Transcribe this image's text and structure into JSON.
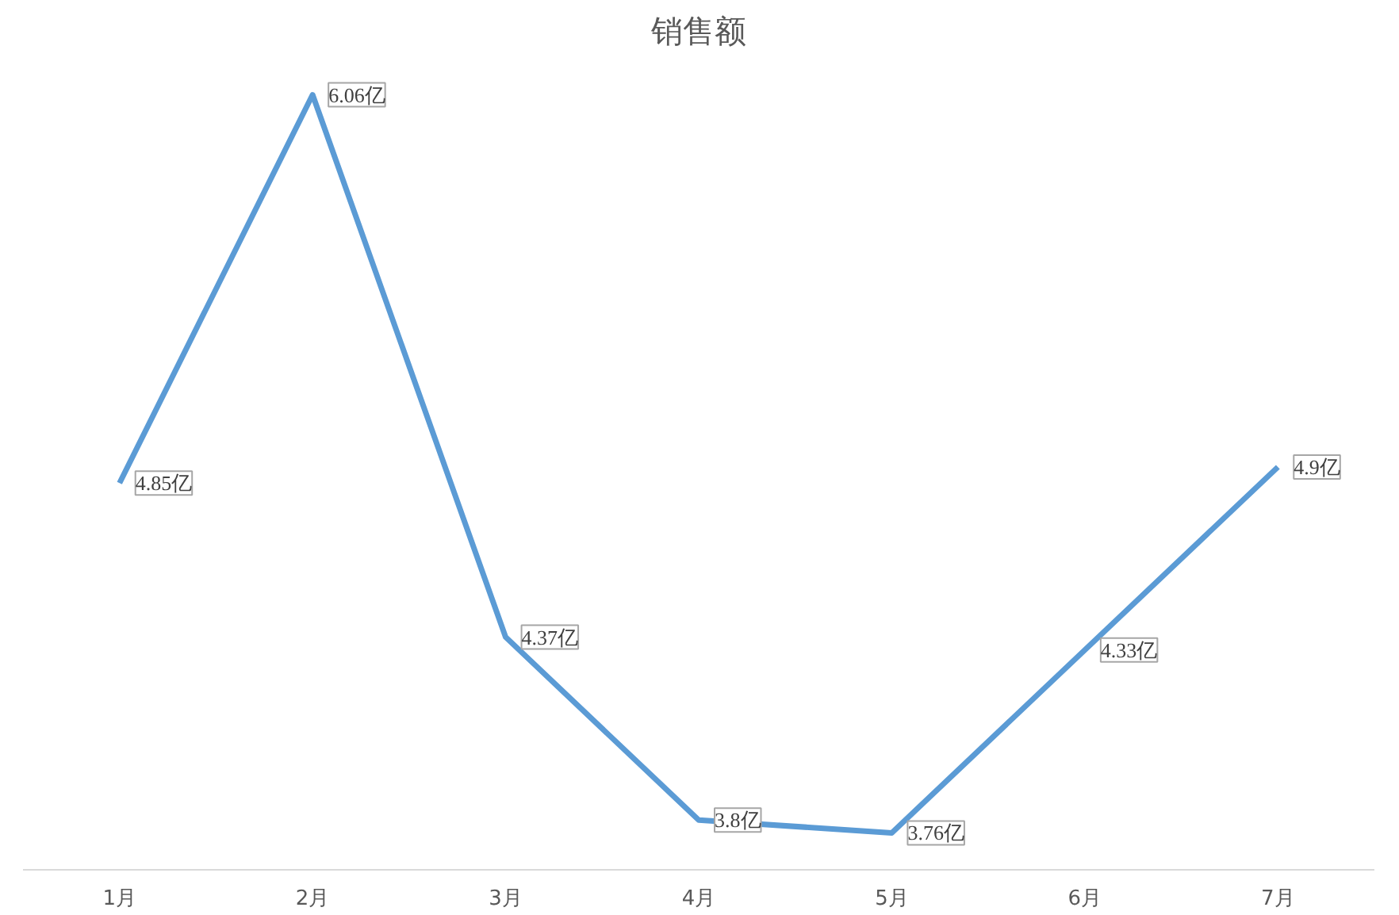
{
  "chart_data": {
    "type": "line",
    "title": "销售额",
    "categories": [
      "1月",
      "2月",
      "3月",
      "4月",
      "5月",
      "6月",
      "7月"
    ],
    "series": [
      {
        "color": "#5b9bd5",
        "values": [
          4.85,
          6.06,
          4.37,
          3.8,
          3.76,
          4.33,
          4.9
        ],
        "value_labels": [
          "4.85亿",
          "6.06亿",
          "4.37亿",
          "3.8亿",
          "3.76亿",
          "4.33亿",
          "4.9亿"
        ]
      }
    ],
    "tick_labels": "x",
    "line_style": "solid"
  }
}
